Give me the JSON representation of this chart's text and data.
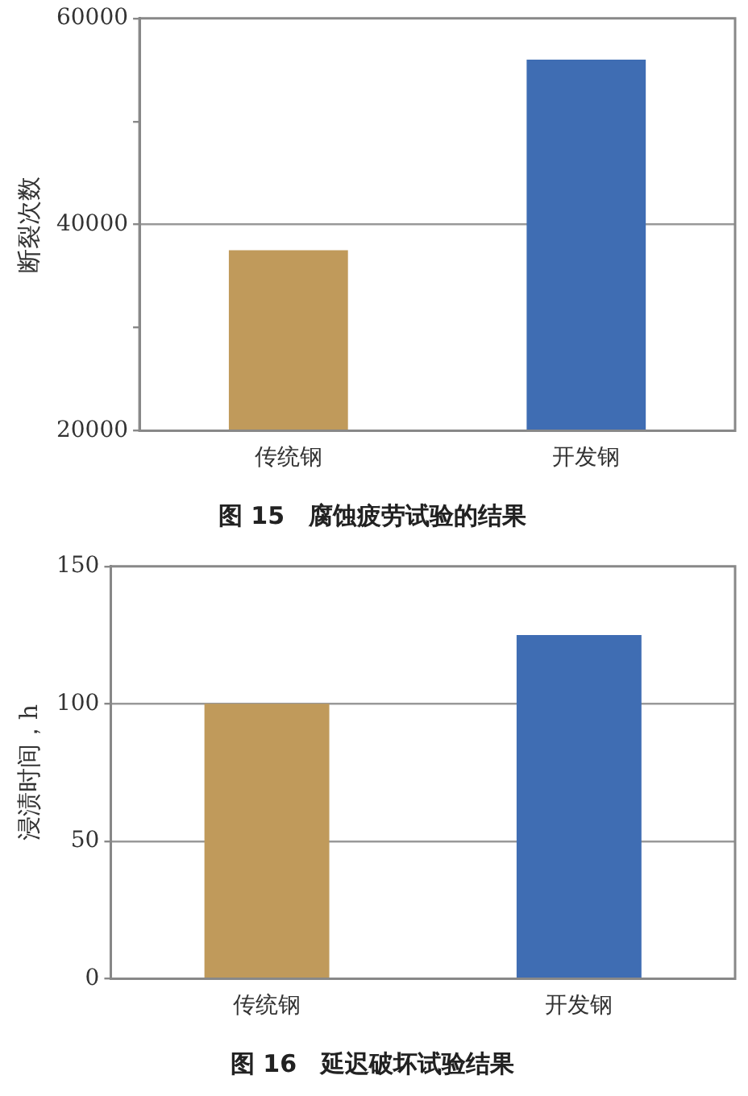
{
  "chart_data": [
    {
      "type": "bar",
      "title": "图 15　腐蚀疲劳试验的结果",
      "ylabel": "断裂次数",
      "categories": [
        "传统钢",
        "开发钢"
      ],
      "values": [
        37500,
        56000
      ],
      "colors": [
        "#c09a5b",
        "#3f6db3"
      ],
      "ylim": [
        20000,
        60000
      ],
      "yticks": [
        20000,
        {
          "value": 30000,
          "label": null
        },
        40000,
        {
          "value": 50000,
          "label": null
        },
        60000
      ],
      "grid": "y",
      "legend": false
    },
    {
      "type": "bar",
      "title": "图 16　延迟破坏试验结果",
      "ylabel": "浸渍时间，h",
      "categories": [
        "传统钢",
        "开发钢"
      ],
      "values": [
        100,
        125
      ],
      "colors": [
        "#c09a5b",
        "#3f6db3"
      ],
      "ylim": [
        0,
        150
      ],
      "yticks": [
        0,
        50,
        100,
        150
      ],
      "grid": "y",
      "legend": false
    }
  ]
}
